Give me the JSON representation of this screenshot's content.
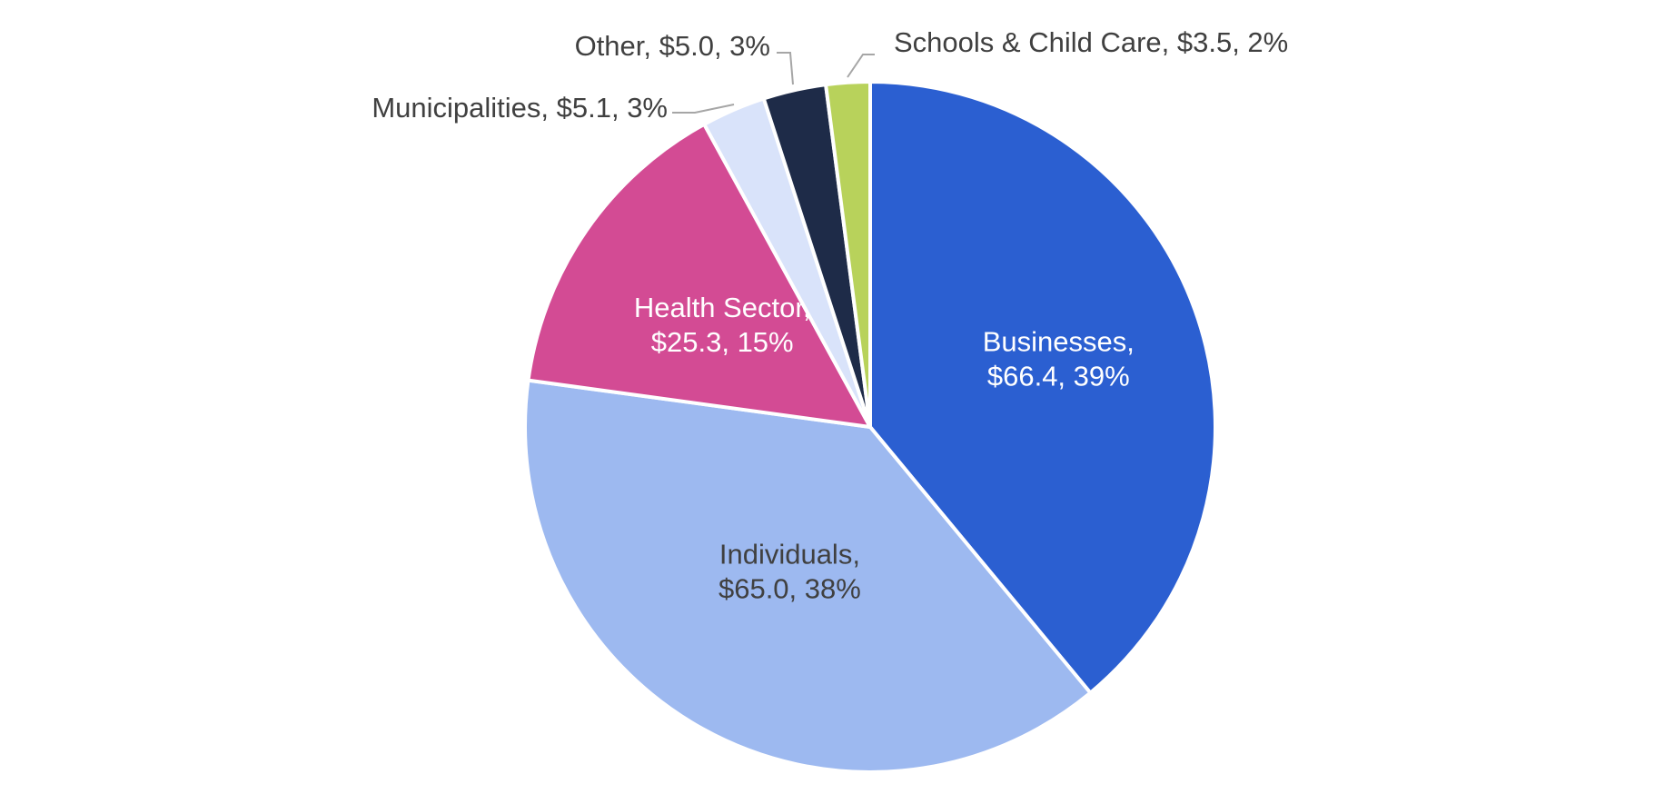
{
  "chart_data": {
    "type": "pie",
    "title": "",
    "start_angle_deg": 0,
    "direction": "clockwise",
    "slices": [
      {
        "name": "Businesses",
        "value": 66.4,
        "percent": 39,
        "value_label": "$66.4, 39%",
        "color": "#2b5fd1",
        "label_color": "#ffffff",
        "label_placement": "inside"
      },
      {
        "name": "Individuals",
        "value": 65.0,
        "percent": 38,
        "value_label": "$65.0, 38%",
        "color": "#9db9f0",
        "label_color": "#404040",
        "label_placement": "inside"
      },
      {
        "name": "Health Sector",
        "value": 25.3,
        "percent": 15,
        "value_label": "$25.3, 15%",
        "color": "#d34b94",
        "label_color": "#ffffff",
        "label_placement": "inside"
      },
      {
        "name": "Municipalities",
        "value": 5.1,
        "percent": 3,
        "value_label": "$5.1, 3%",
        "color": "#d9e3fa",
        "label_color": "#404040",
        "label_placement": "outside"
      },
      {
        "name": "Other",
        "value": 5.0,
        "percent": 3,
        "value_label": "$5.0, 3%",
        "color": "#1e2b48",
        "label_color": "#404040",
        "label_placement": "outside"
      },
      {
        "name": "Schools & Child Care",
        "value": 3.5,
        "percent": 2,
        "value_label": "$3.5, 2%",
        "color": "#b8d25b",
        "label_color": "#404040",
        "label_placement": "outside"
      }
    ]
  }
}
